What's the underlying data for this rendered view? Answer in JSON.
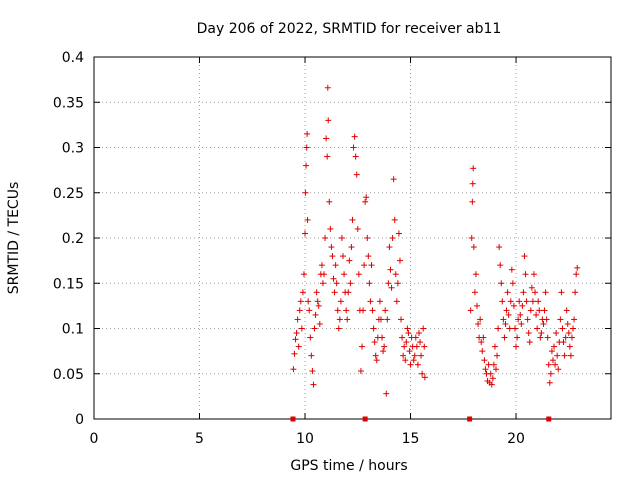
{
  "chart_data": {
    "type": "scatter",
    "title": "Day 206 of 2022, SRMTID for receiver ab11",
    "xlabel": "GPS time / hours",
    "ylabel": "SRMTID / TECUs",
    "xlim": [
      0,
      24.5
    ],
    "ylim": [
      0,
      0.4
    ],
    "xticks": [
      0,
      5,
      10,
      15,
      20
    ],
    "xtick_labels": [
      "0",
      "5",
      "10",
      "15",
      "20"
    ],
    "yticks": [
      0,
      0.05,
      0.1,
      0.15,
      0.2,
      0.25,
      0.3,
      0.35,
      0.4
    ],
    "ytick_labels": [
      "0",
      "0.05",
      "0.1",
      "0.15",
      "0.2",
      "0.25",
      "0.3",
      "0.35",
      "0.4"
    ],
    "grid": true,
    "marker": "+",
    "color": "#e00000",
    "series": [
      {
        "name": "SRMTID",
        "points": [
          [
            9.45,
            0.055
          ],
          [
            9.5,
            0.072
          ],
          [
            9.55,
            0.088
          ],
          [
            9.6,
            0.095
          ],
          [
            9.65,
            0.11
          ],
          [
            9.7,
            0.08
          ],
          [
            9.75,
            0.12
          ],
          [
            9.8,
            0.13
          ],
          [
            9.85,
            0.1
          ],
          [
            9.9,
            0.14
          ],
          [
            9.95,
            0.16
          ],
          [
            10.0,
            0.205
          ],
          [
            10.02,
            0.25
          ],
          [
            10.05,
            0.28
          ],
          [
            10.08,
            0.3
          ],
          [
            10.1,
            0.315
          ],
          [
            10.12,
            0.22
          ],
          [
            10.15,
            0.13
          ],
          [
            10.2,
            0.12
          ],
          [
            10.25,
            0.09
          ],
          [
            10.3,
            0.07
          ],
          [
            10.35,
            0.053
          ],
          [
            10.4,
            0.038
          ],
          [
            10.45,
            0.1
          ],
          [
            10.5,
            0.115
          ],
          [
            10.55,
            0.14
          ],
          [
            10.6,
            0.13
          ],
          [
            10.65,
            0.125
          ],
          [
            10.7,
            0.105
          ],
          [
            10.75,
            0.16
          ],
          [
            10.8,
            0.17
          ],
          [
            10.85,
            0.15
          ],
          [
            10.9,
            0.16
          ],
          [
            10.95,
            0.2
          ],
          [
            11.0,
            0.31
          ],
          [
            11.05,
            0.29
          ],
          [
            11.08,
            0.366
          ],
          [
            11.1,
            0.33
          ],
          [
            11.15,
            0.24
          ],
          [
            11.2,
            0.21
          ],
          [
            11.25,
            0.19
          ],
          [
            11.3,
            0.18
          ],
          [
            11.35,
            0.155
          ],
          [
            11.4,
            0.14
          ],
          [
            11.45,
            0.17
          ],
          [
            11.5,
            0.15
          ],
          [
            11.55,
            0.12
          ],
          [
            11.6,
            0.1
          ],
          [
            11.65,
            0.11
          ],
          [
            11.7,
            0.13
          ],
          [
            11.75,
            0.2
          ],
          [
            11.8,
            0.18
          ],
          [
            11.85,
            0.16
          ],
          [
            11.9,
            0.14
          ],
          [
            11.95,
            0.12
          ],
          [
            12.0,
            0.11
          ],
          [
            12.05,
            0.14
          ],
          [
            12.1,
            0.175
          ],
          [
            12.15,
            0.15
          ],
          [
            12.2,
            0.19
          ],
          [
            12.25,
            0.22
          ],
          [
            12.3,
            0.3
          ],
          [
            12.35,
            0.312
          ],
          [
            12.4,
            0.29
          ],
          [
            12.45,
            0.27
          ],
          [
            12.5,
            0.21
          ],
          [
            12.55,
            0.16
          ],
          [
            12.6,
            0.12
          ],
          [
            12.65,
            0.053
          ],
          [
            12.7,
            0.08
          ],
          [
            12.75,
            0.12
          ],
          [
            12.8,
            0.17
          ],
          [
            12.85,
            0.24
          ],
          [
            12.9,
            0.245
          ],
          [
            12.95,
            0.2
          ],
          [
            13.0,
            0.18
          ],
          [
            13.05,
            0.15
          ],
          [
            13.1,
            0.13
          ],
          [
            13.15,
            0.17
          ],
          [
            13.2,
            0.12
          ],
          [
            13.25,
            0.1
          ],
          [
            13.3,
            0.085
          ],
          [
            13.35,
            0.07
          ],
          [
            13.4,
            0.065
          ],
          [
            13.45,
            0.09
          ],
          [
            13.5,
            0.11
          ],
          [
            13.55,
            0.13
          ],
          [
            13.6,
            0.11
          ],
          [
            13.65,
            0.09
          ],
          [
            13.7,
            0.075
          ],
          [
            13.75,
            0.08
          ],
          [
            13.8,
            0.12
          ],
          [
            13.85,
            0.028
          ],
          [
            13.9,
            0.11
          ],
          [
            13.95,
            0.15
          ],
          [
            14.0,
            0.19
          ],
          [
            14.05,
            0.165
          ],
          [
            14.1,
            0.145
          ],
          [
            14.15,
            0.2
          ],
          [
            14.2,
            0.265
          ],
          [
            14.25,
            0.22
          ],
          [
            14.3,
            0.16
          ],
          [
            14.35,
            0.13
          ],
          [
            14.4,
            0.15
          ],
          [
            14.45,
            0.205
          ],
          [
            14.5,
            0.175
          ],
          [
            14.55,
            0.11
          ],
          [
            14.6,
            0.09
          ],
          [
            14.65,
            0.07
          ],
          [
            14.7,
            0.08
          ],
          [
            14.75,
            0.065
          ],
          [
            14.8,
            0.085
          ],
          [
            14.85,
            0.1
          ],
          [
            14.9,
            0.095
          ],
          [
            14.95,
            0.075
          ],
          [
            15.0,
            0.06
          ],
          [
            15.05,
            0.09
          ],
          [
            15.1,
            0.08
          ],
          [
            15.15,
            0.065
          ],
          [
            15.2,
            0.07
          ],
          [
            15.25,
            0.09
          ],
          [
            15.3,
            0.08
          ],
          [
            15.35,
            0.06
          ],
          [
            15.4,
            0.095
          ],
          [
            15.45,
            0.085
          ],
          [
            15.5,
            0.07
          ],
          [
            15.55,
            0.05
          ],
          [
            15.6,
            0.1
          ],
          [
            15.65,
            0.08
          ],
          [
            15.68,
            0.046
          ],
          [
            17.85,
            0.12
          ],
          [
            17.9,
            0.2
          ],
          [
            17.93,
            0.24
          ],
          [
            17.95,
            0.26
          ],
          [
            17.97,
            0.277
          ],
          [
            18.0,
            0.19
          ],
          [
            18.05,
            0.14
          ],
          [
            18.1,
            0.16
          ],
          [
            18.15,
            0.125
          ],
          [
            18.2,
            0.105
          ],
          [
            18.25,
            0.09
          ],
          [
            18.3,
            0.11
          ],
          [
            18.35,
            0.085
          ],
          [
            18.4,
            0.075
          ],
          [
            18.45,
            0.09
          ],
          [
            18.5,
            0.065
          ],
          [
            18.55,
            0.055
          ],
          [
            18.6,
            0.05
          ],
          [
            18.65,
            0.042
          ],
          [
            18.7,
            0.06
          ],
          [
            18.75,
            0.04
          ],
          [
            18.8,
            0.05
          ],
          [
            18.85,
            0.038
          ],
          [
            18.9,
            0.045
          ],
          [
            18.95,
            0.06
          ],
          [
            19.0,
            0.08
          ],
          [
            19.05,
            0.055
          ],
          [
            19.1,
            0.07
          ],
          [
            19.15,
            0.1
          ],
          [
            19.2,
            0.19
          ],
          [
            19.25,
            0.17
          ],
          [
            19.3,
            0.15
          ],
          [
            19.35,
            0.13
          ],
          [
            19.4,
            0.11
          ],
          [
            19.45,
            0.09
          ],
          [
            19.5,
            0.105
          ],
          [
            19.55,
            0.12
          ],
          [
            19.6,
            0.14
          ],
          [
            19.65,
            0.115
          ],
          [
            19.7,
            0.1
          ],
          [
            19.75,
            0.13
          ],
          [
            19.8,
            0.165
          ],
          [
            19.85,
            0.15
          ],
          [
            19.9,
            0.125
          ],
          [
            19.95,
            0.1
          ],
          [
            20.0,
            0.08
          ],
          [
            20.05,
            0.09
          ],
          [
            20.1,
            0.11
          ],
          [
            20.15,
            0.13
          ],
          [
            20.2,
            0.115
          ],
          [
            20.25,
            0.105
          ],
          [
            20.3,
            0.125
          ],
          [
            20.35,
            0.14
          ],
          [
            20.4,
            0.18
          ],
          [
            20.45,
            0.16
          ],
          [
            20.5,
            0.13
          ],
          [
            20.55,
            0.11
          ],
          [
            20.6,
            0.095
          ],
          [
            20.65,
            0.085
          ],
          [
            20.7,
            0.12
          ],
          [
            20.75,
            0.145
          ],
          [
            20.8,
            0.13
          ],
          [
            20.85,
            0.16
          ],
          [
            20.9,
            0.14
          ],
          [
            20.95,
            0.115
          ],
          [
            21.0,
            0.1
          ],
          [
            21.05,
            0.13
          ],
          [
            21.1,
            0.12
          ],
          [
            21.15,
            0.09
          ],
          [
            21.2,
            0.095
          ],
          [
            21.25,
            0.11
          ],
          [
            21.3,
            0.105
          ],
          [
            21.35,
            0.12
          ],
          [
            21.4,
            0.14
          ],
          [
            21.45,
            0.11
          ],
          [
            21.5,
            0.09
          ],
          [
            21.55,
            0.06
          ],
          [
            21.6,
            0.04
          ],
          [
            21.65,
            0.05
          ],
          [
            21.7,
            0.075
          ],
          [
            21.75,
            0.065
          ],
          [
            21.8,
            0.08
          ],
          [
            21.85,
            0.06
          ],
          [
            21.9,
            0.095
          ],
          [
            21.95,
            0.07
          ],
          [
            22.0,
            0.055
          ],
          [
            22.05,
            0.085
          ],
          [
            22.1,
            0.11
          ],
          [
            22.15,
            0.14
          ],
          [
            22.2,
            0.1
          ],
          [
            22.25,
            0.085
          ],
          [
            22.3,
            0.07
          ],
          [
            22.35,
            0.09
          ],
          [
            22.4,
            0.12
          ],
          [
            22.45,
            0.105
          ],
          [
            22.5,
            0.095
          ],
          [
            22.55,
            0.08
          ],
          [
            22.6,
            0.07
          ],
          [
            22.65,
            0.09
          ],
          [
            22.7,
            0.1
          ],
          [
            22.75,
            0.11
          ],
          [
            22.8,
            0.14
          ],
          [
            22.85,
            0.16
          ],
          [
            22.9,
            0.167
          ]
        ]
      }
    ],
    "gap_markers_x": [
      9.43,
      12.85,
      17.8,
      21.55
    ]
  }
}
